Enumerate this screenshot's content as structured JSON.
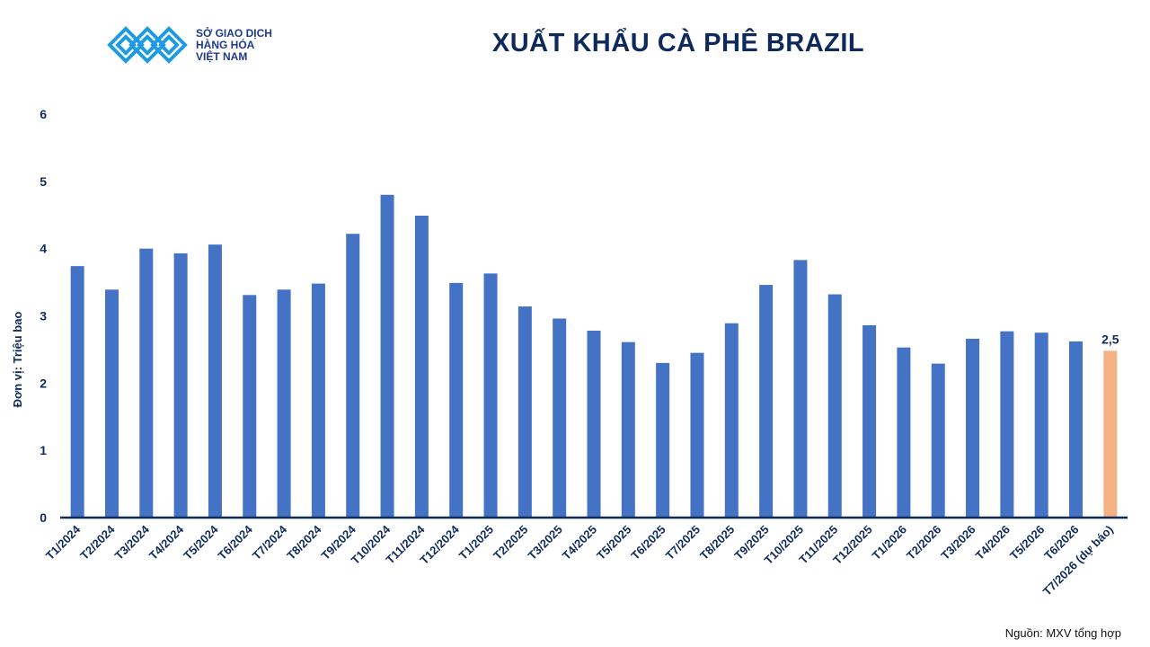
{
  "logo": {
    "lines": [
      "SỞ GIAO DỊCH",
      "HÀNG HÓA",
      "VIỆT NAM"
    ],
    "mark": "TM"
  },
  "title": "XUẤT KHẨU CÀ PHÊ BRAZIL",
  "source": "Nguồn: MXV tổng hợp",
  "colors": {
    "bar": "#4472c4",
    "forecast_bar": "#f4b183",
    "axis": "#0e2a5c",
    "title": "#0e2a5c",
    "logo": "#1f9be0"
  },
  "chart_data": {
    "type": "bar",
    "ylabel": "Đơn vị: Triệu bao",
    "ylim": [
      0,
      6
    ],
    "yticks": [
      0,
      1,
      2,
      3,
      4,
      5,
      6
    ],
    "grid": false,
    "categories": [
      "T1/2024",
      "T2/2024",
      "T3/2024",
      "T4/2024",
      "T5/2024",
      "T6/2024",
      "T7/2024",
      "T8/2024",
      "T9/2024",
      "T10/2024",
      "T11/2024",
      "T12/2024",
      "T1/2025",
      "T2/2025",
      "T3/2025",
      "T4/2025",
      "T5/2025",
      "T6/2025",
      "T7/2025",
      "T8/2025",
      "T9/2025",
      "T10/2025",
      "T11/2025",
      "T12/2025",
      "T1/2026",
      "T2/2026",
      "T3/2026",
      "T4/2026",
      "T5/2026",
      "T6/2026",
      "T7/2026 (dự báo)"
    ],
    "values": [
      3.74,
      3.39,
      4.0,
      3.93,
      4.06,
      3.31,
      3.39,
      3.48,
      4.22,
      4.8,
      4.49,
      3.49,
      3.63,
      3.14,
      2.96,
      2.78,
      2.61,
      2.3,
      2.45,
      2.89,
      3.46,
      3.83,
      3.32,
      2.86,
      2.53,
      2.29,
      2.66,
      2.77,
      2.75,
      2.62,
      2.48
    ],
    "highlight_index": 30,
    "annotations": [
      {
        "index": 30,
        "text": "2,5"
      }
    ]
  }
}
